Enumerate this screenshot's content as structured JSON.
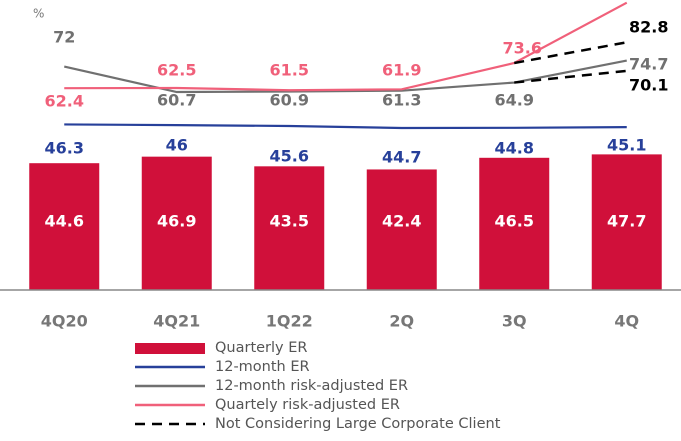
{
  "chart_data": {
    "type": "bar",
    "unit_label": "%",
    "categories": [
      "4Q20",
      "4Q21",
      "1Q22",
      "2Q",
      "3Q",
      "4Q"
    ],
    "ylim": [
      0,
      102
    ],
    "y2lim": [
      -27.3,
      101.6
    ],
    "bars": {
      "name": "Quarterly ER",
      "color": "#d0103a",
      "values": [
        44.6,
        46.9,
        43.5,
        42.4,
        46.5,
        47.7
      ]
    },
    "series": [
      {
        "name": "12-month ER",
        "color": "#27409a",
        "axis": "y2",
        "values": [
          46.3,
          46.0,
          45.6,
          44.7,
          44.8,
          45.1
        ]
      },
      {
        "name": "12-month risk-adjusted ER",
        "color": "#707070",
        "axis": "y2",
        "values": [
          72.0,
          60.7,
          60.9,
          61.3,
          64.9,
          74.7
        ]
      },
      {
        "name": "Quartely risk-adjusted ER",
        "color": "#f0607a",
        "axis": "y2",
        "values": [
          62.4,
          62.5,
          61.5,
          61.9,
          73.6,
          100.4
        ],
        "value_labels": [
          "62.4",
          "62.5",
          "61.5",
          "61.9",
          "73.6",
          null
        ]
      },
      {
        "name": "Not Considering Large Corporate Client",
        "color": "#000000",
        "axis": "y2",
        "dashed": true,
        "values": [
          null,
          null,
          null,
          null,
          73.6,
          82.8
        ],
        "value_labels": [
          null,
          null,
          null,
          null,
          null,
          "82.8"
        ]
      },
      {
        "color": "#000000",
        "axis": "y2",
        "dashed": true,
        "values": [
          null,
          null,
          null,
          null,
          64.9,
          70.1
        ],
        "value_labels": [
          null,
          null,
          null,
          null,
          null,
          "70.1"
        ]
      }
    ]
  }
}
